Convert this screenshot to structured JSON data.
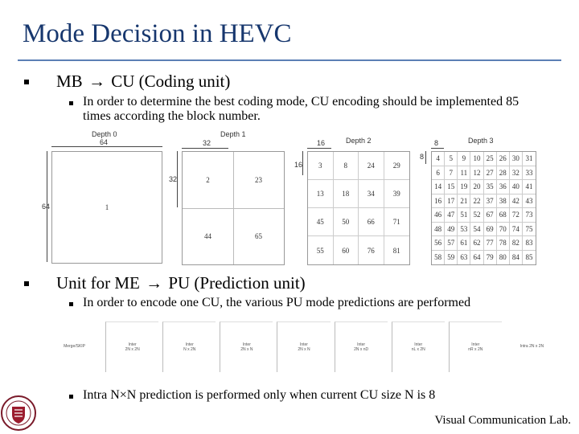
{
  "title": "Mode Decision in HEVC",
  "bullets": {
    "b1": {
      "pre": "MB",
      "post": "CU (Coding unit)"
    },
    "b1_sub": "In order to determine the best coding mode, CU encoding should be implemented 85 times according the block number.",
    "b2": {
      "pre": "Unit for ME",
      "post": "PU (Prediction unit)"
    },
    "b2_sub1": "In order to encode one CU, the various PU mode predictions are performed",
    "b2_sub2": "Intra N×N prediction is performed only when current CU size N is 8"
  },
  "arrow_glyph": "→",
  "diagram": {
    "depth0": {
      "label": "Depth 0",
      "size": "64",
      "side": "64",
      "cell": "1"
    },
    "depth1": {
      "label": "Depth 1",
      "size": "32",
      "side": "32",
      "cells": [
        "2",
        "23",
        "44",
        "65"
      ]
    },
    "depth2": {
      "label": "Depth 2",
      "size": "16",
      "side": "16",
      "cells": [
        "3",
        "8",
        "24",
        "29",
        "13",
        "18",
        "34",
        "39",
        "45",
        "50",
        "66",
        "71",
        "55",
        "60",
        "76",
        "81"
      ]
    },
    "depth3": {
      "label": "Depth 3",
      "size": "8",
      "side": "8",
      "cells": [
        "4",
        "5",
        "9",
        "10",
        "25",
        "26",
        "30",
        "31",
        "6",
        "7",
        "11",
        "12",
        "27",
        "28",
        "32",
        "33",
        "14",
        "15",
        "19",
        "20",
        "35",
        "36",
        "40",
        "41",
        "16",
        "17",
        "21",
        "22",
        "37",
        "38",
        "42",
        "43",
        "46",
        "47",
        "51",
        "52",
        "67",
        "68",
        "72",
        "73",
        "48",
        "49",
        "53",
        "54",
        "69",
        "70",
        "74",
        "75",
        "56",
        "57",
        "61",
        "62",
        "77",
        "78",
        "82",
        "83",
        "58",
        "59",
        "63",
        "64",
        "79",
        "80",
        "84",
        "85"
      ]
    }
  },
  "pu_modes": [
    "Merge/SKIP",
    "Inter\n2N x 2N",
    "Inter\nN x 2N",
    "Inter\n2N x N",
    "Inter\n2N x N",
    "Inter\n2N x nD",
    "Inter\nnL x 2N",
    "Inter\nnR x 2N",
    "Intra 2N x 2N"
  ],
  "footer": "Visual Communication Lab."
}
